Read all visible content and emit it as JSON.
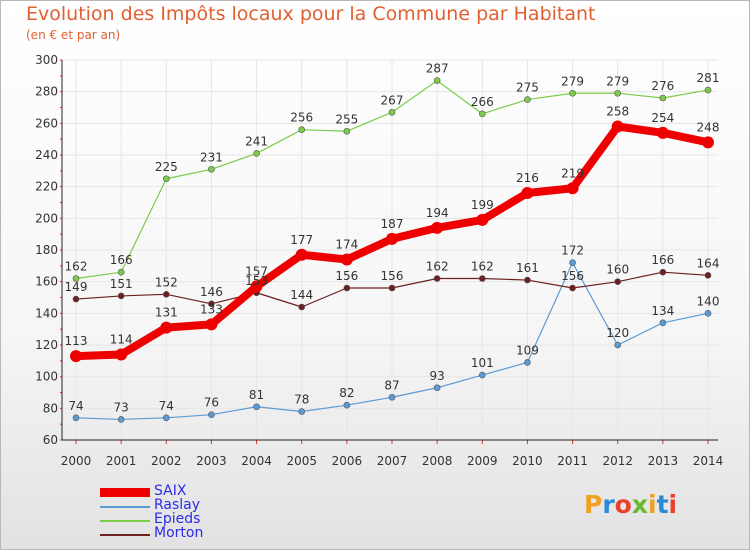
{
  "header": {
    "title": "Evolution des Impôts locaux pour la Commune par Habitant",
    "subtitle": "(en € et par an)"
  },
  "brand": {
    "letters": [
      "P",
      "r",
      "o",
      "x",
      "i",
      "t",
      "i"
    ],
    "colors": [
      "#f0a020",
      "#2a8ad6",
      "#e8412c",
      "#6ab82f",
      "#f0a020",
      "#2a8ad6",
      "#e8412c"
    ]
  },
  "chart_data": {
    "type": "line",
    "title": "Evolution des Impôts locaux pour la Commune par Habitant",
    "subtitle": "(en € et par an)",
    "categories": [
      "2000",
      "2001",
      "2002",
      "2003",
      "2004",
      "2005",
      "2006",
      "2007",
      "2008",
      "2009",
      "2010",
      "2011",
      "2012",
      "2013",
      "2014"
    ],
    "ylim": [
      60,
      300
    ],
    "yticks": [
      60,
      80,
      100,
      120,
      140,
      160,
      180,
      200,
      220,
      240,
      260,
      280,
      300
    ],
    "grid": true,
    "legend_position": "bottom-left",
    "series": [
      {
        "name": "SAIX",
        "color": "#ee0000",
        "values": [
          113,
          114,
          131,
          133,
          157,
          177,
          174,
          187,
          194,
          199,
          216,
          219,
          258,
          254,
          248
        ]
      },
      {
        "name": "Raslay",
        "color": "#5b9bd5",
        "values": [
          74,
          73,
          74,
          76,
          81,
          78,
          82,
          87,
          93,
          101,
          109,
          172,
          120,
          134,
          140
        ]
      },
      {
        "name": "Epieds",
        "color": "#7ccc4a",
        "values": [
          162,
          166,
          225,
          231,
          241,
          256,
          255,
          267,
          287,
          266,
          275,
          279,
          279,
          276,
          281
        ]
      },
      {
        "name": "Morton",
        "color": "#6b1f1f",
        "values": [
          149,
          151,
          152,
          146,
          153,
          144,
          156,
          156,
          162,
          162,
          161,
          156,
          160,
          166,
          164
        ]
      }
    ],
    "data_labels": [
      [
        "113",
        "114",
        "131",
        "133",
        "157",
        "177",
        "174",
        "187",
        "194",
        "199",
        "216",
        "219",
        "258",
        "254",
        "248"
      ],
      [
        "74",
        "73",
        "74",
        "76",
        "81",
        "78",
        "82",
        "87",
        "93",
        "101",
        "109",
        "172",
        "120",
        "134",
        "140"
      ],
      [
        "162",
        "166",
        "225",
        "231",
        "241",
        "256",
        "255",
        "267",
        "287",
        "266",
        "275",
        "279",
        "279",
        "276",
        "281"
      ],
      [
        "149",
        "151",
        "152",
        "146",
        "153",
        "144",
        "156",
        "156",
        "162",
        "162",
        "161",
        "156",
        "160",
        "166",
        "164"
      ]
    ]
  }
}
